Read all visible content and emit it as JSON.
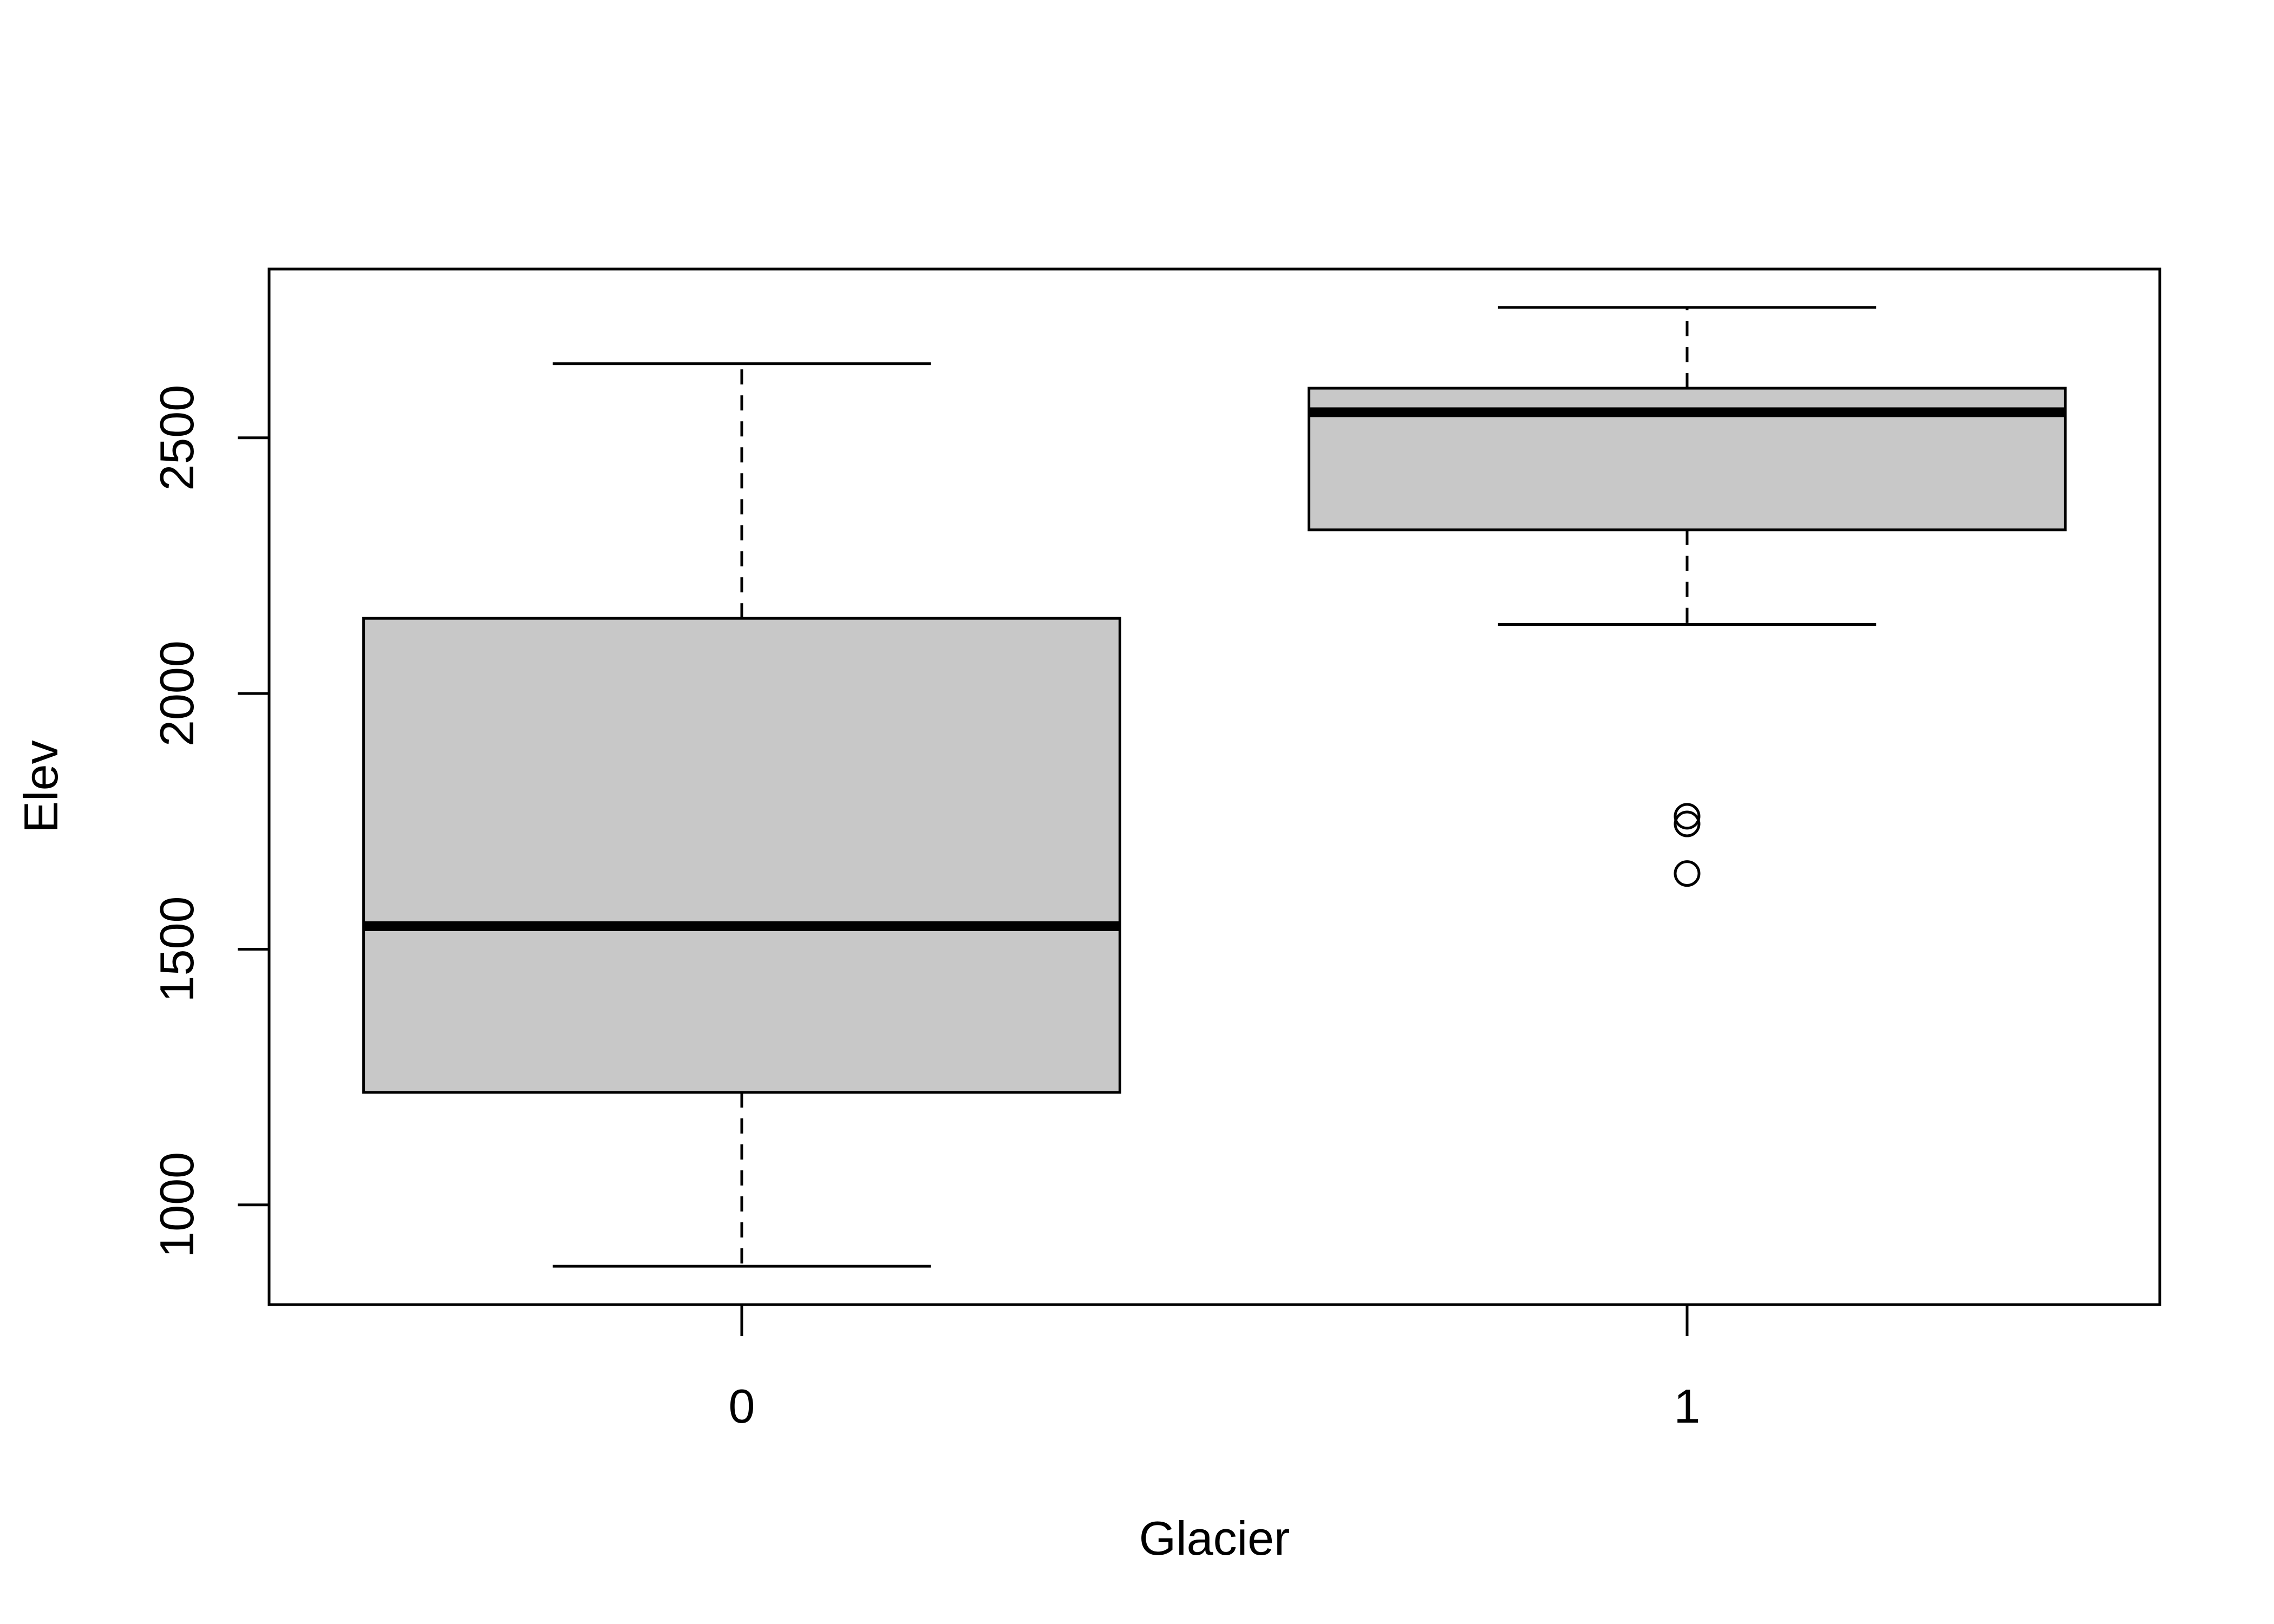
{
  "chart_data": {
    "type": "boxplot",
    "xlabel": "Glacier",
    "ylabel": "Elev",
    "categories": [
      "0",
      "1"
    ],
    "ylim": [
      805,
      2830
    ],
    "y_ticks": [
      1000,
      1500,
      2000,
      2500
    ],
    "grid": false,
    "legend": "none",
    "box_fill": "#c8c8c8",
    "stroke": "#000000",
    "boxes": [
      {
        "category": "0",
        "whisker_low": 880,
        "q1": 1220,
        "median": 1545,
        "q3": 2147,
        "whisker_high": 2645,
        "outliers": []
      },
      {
        "category": "1",
        "whisker_low": 2135,
        "q1": 2320,
        "median": 2550,
        "q3": 2597,
        "whisker_high": 2755,
        "outliers": [
          1648,
          1745,
          1760
        ]
      }
    ]
  }
}
